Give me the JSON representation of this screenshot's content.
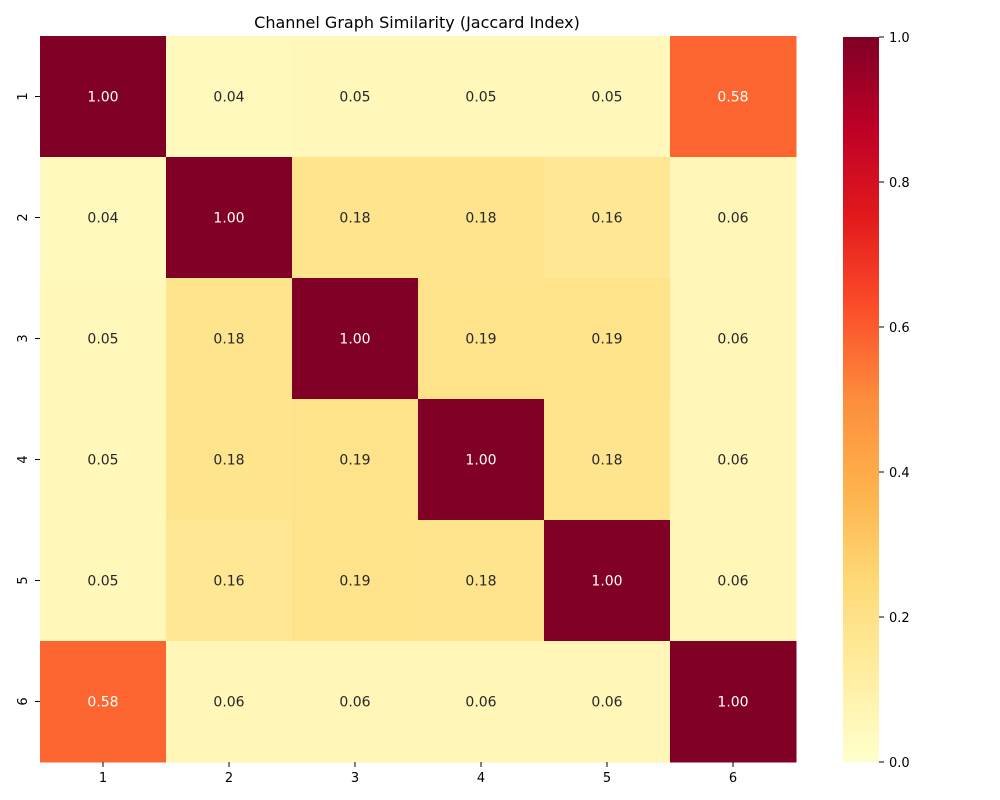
{
  "chart_data": {
    "type": "heatmap",
    "title": "Channel Graph Similarity (Jaccard Index)",
    "x_categories": [
      "1",
      "2",
      "3",
      "4",
      "5",
      "6"
    ],
    "y_categories": [
      "1",
      "2",
      "3",
      "4",
      "5",
      "6"
    ],
    "values": [
      [
        1.0,
        0.04,
        0.05,
        0.05,
        0.05,
        0.58
      ],
      [
        0.04,
        1.0,
        0.18,
        0.18,
        0.16,
        0.06
      ],
      [
        0.05,
        0.18,
        1.0,
        0.19,
        0.19,
        0.06
      ],
      [
        0.05,
        0.18,
        0.19,
        1.0,
        0.18,
        0.06
      ],
      [
        0.05,
        0.16,
        0.19,
        0.18,
        1.0,
        0.06
      ],
      [
        0.58,
        0.06,
        0.06,
        0.06,
        0.06,
        1.0
      ]
    ],
    "value_format": "0.00",
    "colorbar": {
      "min": 0.0,
      "max": 1.0,
      "ticks": [
        "0.0",
        "0.2",
        "0.4",
        "0.6",
        "0.8",
        "1.0"
      ],
      "colormap": "YlOrRd",
      "stops": [
        "#ffffcc",
        "#ffeda0",
        "#fed976",
        "#feb24c",
        "#fd8d3c",
        "#fc4e2a",
        "#e31a1c",
        "#bd0026",
        "#800026"
      ]
    }
  }
}
